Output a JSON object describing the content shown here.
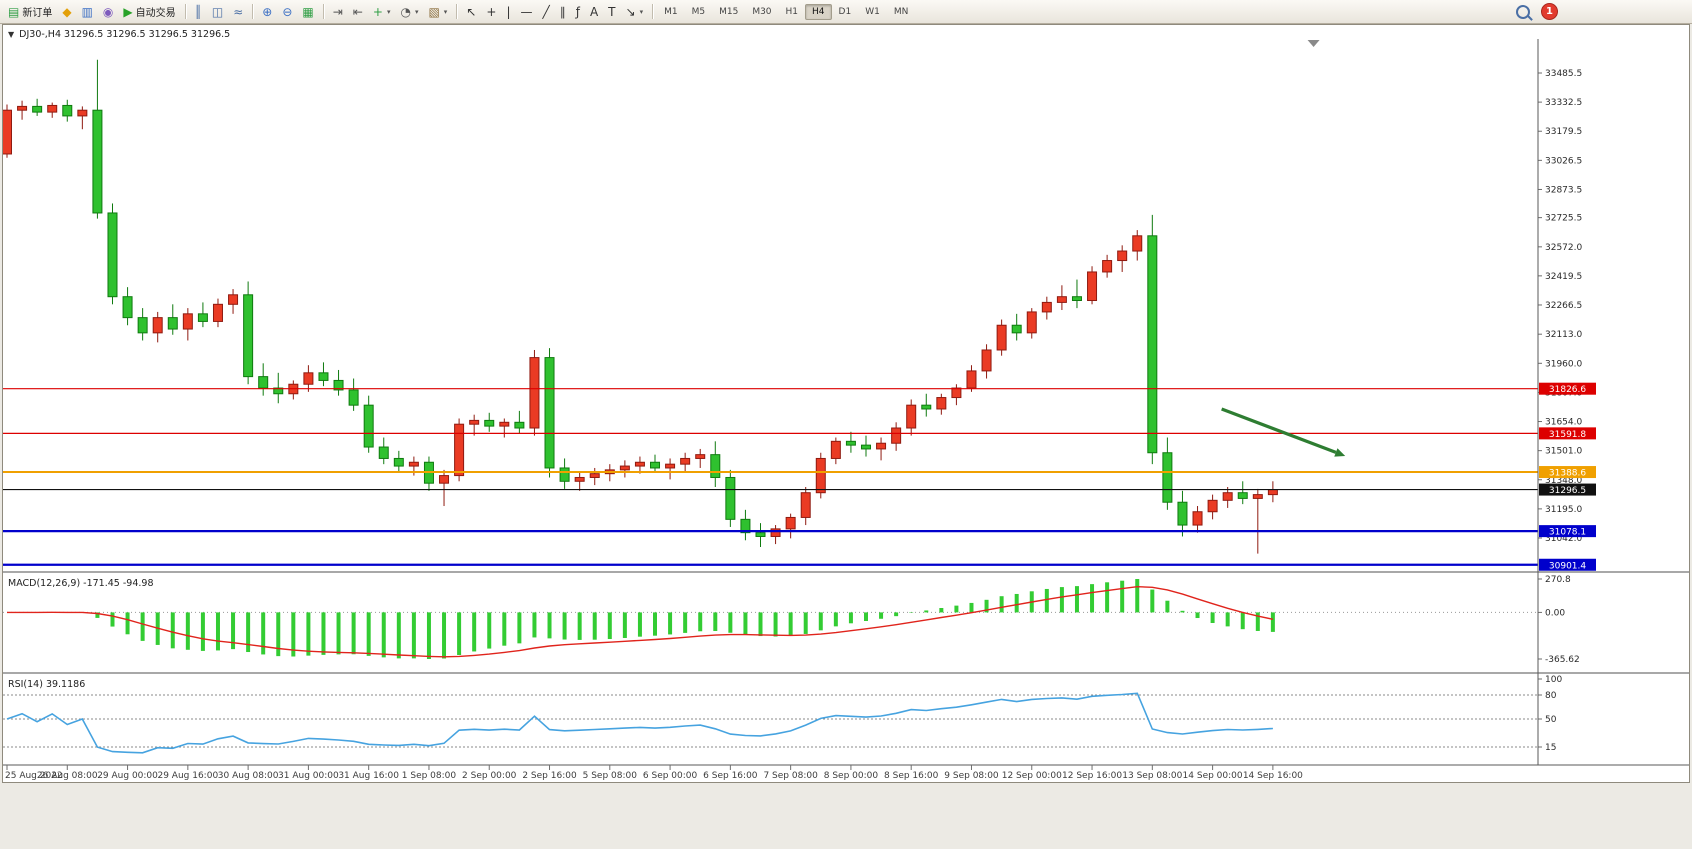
{
  "window": {
    "notification_count": "1"
  },
  "icons": {
    "collapse_arrow": "▼",
    "caret": "▾"
  },
  "chart": {
    "overlay_title": "DJ30-,H4 31296.5 31296.5 31296.5 31296.5"
  },
  "toolbar": {
    "groups": [
      {
        "items": [
          {
            "name": "new-order-button",
            "glyph": "▤",
            "color": "#2f9e44",
            "label": "新订单"
          },
          {
            "name": "mql5-market-icon",
            "glyph": "◆",
            "color": "#e3a008"
          },
          {
            "name": "chart-profiles-icon",
            "glyph": "▥",
            "color": "#3b6fc4"
          },
          {
            "name": "alerts-icon",
            "glyph": "◉",
            "color": "#7e5bbd"
          },
          {
            "name": "autotrading-button",
            "glyph": "▶",
            "color": "#28a228",
            "label": "自动交易"
          }
        ]
      },
      {
        "items": [
          {
            "name": "bar-chart-type-button",
            "glyph": "║",
            "color": "#4a6fa5"
          },
          {
            "name": "candlestick-type-button",
            "glyph": "◫",
            "color": "#4a6fa5"
          },
          {
            "name": "line-chart-type-button",
            "glyph": "≈",
            "color": "#4a6fa5"
          }
        ]
      },
      {
        "items": [
          {
            "name": "zoom-in-button",
            "glyph": "⊕",
            "color": "#3b6fc4"
          },
          {
            "name": "zoom-out-button",
            "glyph": "⊖",
            "color": "#3b6fc4"
          },
          {
            "name": "tile-windows-button",
            "glyph": "▦",
            "color": "#2f9e44"
          }
        ]
      },
      {
        "items": [
          {
            "name": "auto-scroll-button",
            "glyph": "⇥",
            "color": "#555555"
          },
          {
            "name": "chart-shift-button",
            "glyph": "⇤",
            "color": "#555555"
          },
          {
            "name": "indicators-button",
            "glyph": "+",
            "color": "#2f9e44",
            "dropdown": true
          },
          {
            "name": "periods-button",
            "glyph": "◔",
            "color": "#555555",
            "dropdown": true
          },
          {
            "name": "templates-button",
            "glyph": "▧",
            "color": "#8a6d3b",
            "dropdown": true
          }
        ]
      },
      {
        "items": [
          {
            "name": "cursor-tool-button",
            "glyph": "↖",
            "color": "#333333"
          },
          {
            "name": "crosshair-tool-button",
            "glyph": "+",
            "color": "#333333"
          },
          {
            "name": "vertical-line-tool-button",
            "glyph": "|",
            "color": "#333333"
          },
          {
            "name": "horizontal-line-tool-button",
            "glyph": "—",
            "color": "#333333"
          },
          {
            "name": "trendline-tool-button",
            "glyph": "╱",
            "color": "#333333"
          },
          {
            "name": "channel-tool-button",
            "glyph": "∥",
            "color": "#333333"
          },
          {
            "name": "fibonacci-tool-button",
            "glyph": "ƒ",
            "color": "#333333"
          },
          {
            "name": "text-tool-button",
            "glyph": "A",
            "color": "#333333"
          },
          {
            "name": "label-tool-button",
            "glyph": "T",
            "color": "#333333"
          },
          {
            "name": "arrows-tool-button",
            "glyph": "↘",
            "color": "#333333",
            "dropdown": true
          }
        ]
      }
    ],
    "timeframes": [
      "M1",
      "M5",
      "M15",
      "M30",
      "H1",
      "H4",
      "D1",
      "W1",
      "MN"
    ],
    "active_timeframe": "H4"
  },
  "chart_data": {
    "type": "candlestick",
    "symbol": "DJ30-",
    "timeframe": "H4",
    "current_price": 31296.5,
    "price_range_visible": [
      30870,
      33645
    ],
    "price_axis_labels": [
      "33485.5",
      "33332.5",
      "33179.5",
      "33026.5",
      "32873.5",
      "32725.5",
      "32572.0",
      "32419.5",
      "32266.5",
      "32113.0",
      "31960.0",
      "31807.0",
      "31654.0",
      "31501.0",
      "31348.0",
      "31195.0",
      "31042.0"
    ],
    "time_labels": [
      "25 Aug 2022",
      "26 Aug 08:00",
      "29 Aug 00:00",
      "29 Aug 16:00",
      "30 Aug 08:00",
      "31 Aug 00:00",
      "31 Aug 16:00",
      "1 Sep 08:00",
      "2 Sep 00:00",
      "2 Sep 16:00",
      "5 Sep 08:00",
      "6 Sep 00:00",
      "6 Sep 16:00",
      "7 Sep 08:00",
      "8 Sep 00:00",
      "8 Sep 16:00",
      "9 Sep 08:00",
      "12 Sep 00:00",
      "12 Sep 16:00",
      "13 Sep 08:00",
      "14 Sep 00:00",
      "14 Sep 16:00"
    ],
    "label_every_bars": 4,
    "ohlc": [
      [
        33060,
        33320,
        33040,
        33290
      ],
      [
        33290,
        33340,
        33240,
        33310
      ],
      [
        33310,
        33350,
        33260,
        33280
      ],
      [
        33280,
        33330,
        33250,
        33315
      ],
      [
        33315,
        33345,
        33230,
        33260
      ],
      [
        33260,
        33310,
        33190,
        33290
      ],
      [
        33290,
        33555,
        32720,
        32750
      ],
      [
        32750,
        32800,
        32270,
        32310
      ],
      [
        32310,
        32360,
        32160,
        32200
      ],
      [
        32200,
        32250,
        32080,
        32120
      ],
      [
        32120,
        32230,
        32070,
        32200
      ],
      [
        32200,
        32270,
        32110,
        32140
      ],
      [
        32140,
        32250,
        32080,
        32220
      ],
      [
        32220,
        32280,
        32150,
        32180
      ],
      [
        32180,
        32300,
        32150,
        32270
      ],
      [
        32270,
        32350,
        32220,
        32320
      ],
      [
        32320,
        32390,
        31850,
        31890
      ],
      [
        31890,
        31960,
        31790,
        31830
      ],
      [
        31830,
        31910,
        31750,
        31800
      ],
      [
        31800,
        31870,
        31770,
        31850
      ],
      [
        31850,
        31950,
        31810,
        31910
      ],
      [
        31910,
        31965,
        31840,
        31870
      ],
      [
        31870,
        31925,
        31790,
        31820
      ],
      [
        31820,
        31880,
        31710,
        31740
      ],
      [
        31740,
        31790,
        31490,
        31520
      ],
      [
        31520,
        31570,
        31430,
        31460
      ],
      [
        31460,
        31500,
        31390,
        31420
      ],
      [
        31420,
        31470,
        31370,
        31440
      ],
      [
        31440,
        31470,
        31290,
        31330
      ],
      [
        31330,
        31400,
        31210,
        31370
      ],
      [
        31370,
        31670,
        31340,
        31640
      ],
      [
        31640,
        31690,
        31580,
        31660
      ],
      [
        31660,
        31700,
        31600,
        31630
      ],
      [
        31630,
        31670,
        31570,
        31650
      ],
      [
        31650,
        31710,
        31590,
        31620
      ],
      [
        31620,
        32030,
        31580,
        31990
      ],
      [
        31990,
        32040,
        31360,
        31410
      ],
      [
        31410,
        31460,
        31300,
        31340
      ],
      [
        31340,
        31390,
        31290,
        31360
      ],
      [
        31360,
        31410,
        31320,
        31380
      ],
      [
        31380,
        31430,
        31340,
        31400
      ],
      [
        31400,
        31450,
        31360,
        31420
      ],
      [
        31420,
        31470,
        31380,
        31440
      ],
      [
        31440,
        31480,
        31390,
        31410
      ],
      [
        31410,
        31460,
        31350,
        31430
      ],
      [
        31430,
        31490,
        31390,
        31460
      ],
      [
        31460,
        31510,
        31410,
        31480
      ],
      [
        31480,
        31550,
        31310,
        31360
      ],
      [
        31360,
        31400,
        31100,
        31140
      ],
      [
        31140,
        31190,
        31030,
        31070
      ],
      [
        31070,
        31120,
        30995,
        31050
      ],
      [
        31050,
        31110,
        31010,
        31090
      ],
      [
        31090,
        31170,
        31040,
        31150
      ],
      [
        31150,
        31310,
        31110,
        31280
      ],
      [
        31280,
        31490,
        31250,
        31460
      ],
      [
        31460,
        31570,
        31430,
        31550
      ],
      [
        31550,
        31600,
        31490,
        31530
      ],
      [
        31530,
        31580,
        31470,
        31510
      ],
      [
        31510,
        31570,
        31450,
        31540
      ],
      [
        31540,
        31650,
        31500,
        31620
      ],
      [
        31620,
        31770,
        31580,
        31740
      ],
      [
        31740,
        31800,
        31680,
        31720
      ],
      [
        31720,
        31800,
        31690,
        31780
      ],
      [
        31780,
        31850,
        31740,
        31830
      ],
      [
        31830,
        31950,
        31810,
        31920
      ],
      [
        31920,
        32060,
        31880,
        32030
      ],
      [
        32030,
        32190,
        32000,
        32160
      ],
      [
        32160,
        32220,
        32080,
        32120
      ],
      [
        32120,
        32250,
        32090,
        32230
      ],
      [
        32230,
        32310,
        32190,
        32280
      ],
      [
        32280,
        32370,
        32240,
        32310
      ],
      [
        32310,
        32400,
        32250,
        32290
      ],
      [
        32290,
        32470,
        32270,
        32440
      ],
      [
        32440,
        32530,
        32410,
        32500
      ],
      [
        32500,
        32580,
        32440,
        32550
      ],
      [
        32550,
        32660,
        32500,
        32630
      ],
      [
        32630,
        32740,
        31430,
        31490
      ],
      [
        31490,
        31570,
        31190,
        31230
      ],
      [
        31230,
        31290,
        31050,
        31110
      ],
      [
        31110,
        31210,
        31070,
        31180
      ],
      [
        31180,
        31270,
        31140,
        31240
      ],
      [
        31240,
        31310,
        31200,
        31280
      ],
      [
        31280,
        31340,
        31220,
        31250
      ],
      [
        31250,
        31300,
        30960,
        31270
      ],
      [
        31270,
        31340,
        31230,
        31296.5
      ]
    ],
    "hlines": [
      {
        "name": "resistance-line-upper",
        "price": 31826.6,
        "color": "#dd0000",
        "width": 1.2,
        "label": "31826.6",
        "label_bg": "#dd0000"
      },
      {
        "name": "resistance-line-lower",
        "price": 31591.8,
        "color": "#dd0000",
        "width": 1.2,
        "label": "31591.8",
        "label_bg": "#dd0000"
      },
      {
        "name": "pivot-line-orange",
        "price": 31388.6,
        "color": "#f0a000",
        "width": 2,
        "label": "31388.6",
        "label_bg": "#f0a000"
      },
      {
        "name": "current-price-line",
        "price": 31296.5,
        "color": "#111111",
        "width": 1.2,
        "label": "31296.5",
        "label_bg": "#111111"
      },
      {
        "name": "support-line-upper",
        "price": 31078.1,
        "color": "#0000cc",
        "width": 2.2,
        "label": "31078.1",
        "label_bg": "#0000cc"
      },
      {
        "name": "support-line-lower",
        "price": 30901.4,
        "color": "#0000cc",
        "width": 2.2,
        "label": "30901.4",
        "label_bg": "#0000cc"
      }
    ],
    "arrow": {
      "name": "trend-arrow",
      "from_bar": 80.6,
      "from_price": 31720,
      "to_bar": 88.8,
      "to_price": 31473,
      "color": "#2e7d32"
    },
    "shift_marker_bar": 86.7
  },
  "macd": {
    "title_text": "MACD(12,26,9) -171.45 -94.98",
    "axis_labels": [
      "270.8",
      "0.00",
      "-365.62"
    ],
    "fast": 12,
    "slow": 26,
    "signal": 9
  },
  "rsi": {
    "title_text": "RSI(14) 39.1186",
    "axis_labels": [
      "100",
      "80",
      "50",
      "15"
    ],
    "levels": [
      80,
      50,
      15
    ],
    "period": 14
  },
  "colors": {
    "up_candle": "#ea3b24",
    "up_candle_border": "#8f1a10",
    "down_candle": "#2fc12f",
    "down_candle_border": "#0f7a0f",
    "macd_histogram": "#33cc33",
    "macd_signal": "#e0241c",
    "rsi_line": "#46a3e0"
  }
}
